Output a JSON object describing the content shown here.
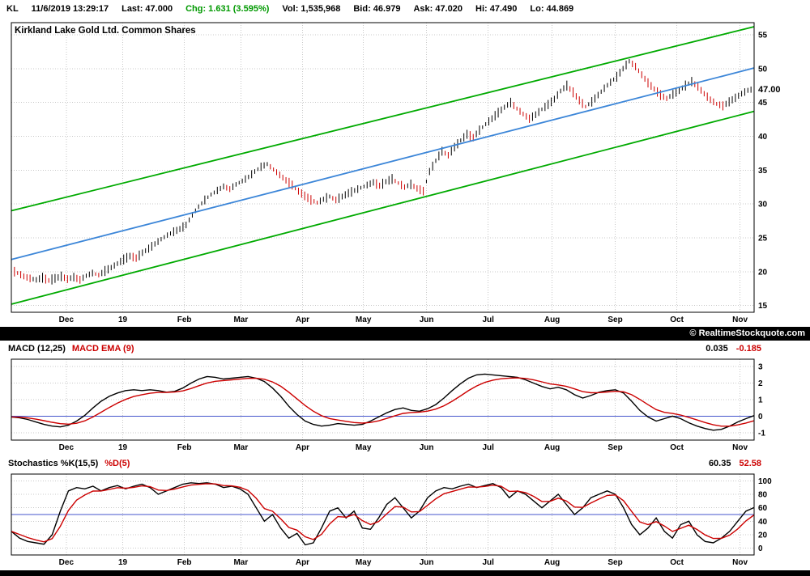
{
  "header": {
    "symbol": "KL",
    "timestamp": "11/6/2019 13:29:17",
    "last": "Last: 47.000",
    "change": "Chg: 1.631 (3.595%)",
    "volume": "Vol: 1,535,968",
    "bid": "Bid: 46.979",
    "ask": "Ask: 47.020",
    "high": "Hi: 47.490",
    "low": "Lo: 44.869"
  },
  "watermark": "© RealtimeStockquote.com",
  "macd_panel": {
    "label_main": "MACD (12,25)",
    "label_signal": "MACD EMA (9)",
    "value_main": "0.035",
    "value_signal": "-0.185"
  },
  "stoch_panel": {
    "label_main": "Stochastics %K(15,5)",
    "label_signal": "%D(5)",
    "value_main": "60.35",
    "value_signal": "52.58"
  },
  "colors": {
    "positive_change": "#009900",
    "signal_red": "#cc0000",
    "channel_green": "#00aa00",
    "trend_blue": "#3c86d8",
    "grid": "#c8c8c8",
    "ref_blue": "#4455cc"
  },
  "chart_data": [
    {
      "type": "bar",
      "name": "price",
      "title": "Kirkland Lake Gold Ltd. Common Shares",
      "ylim": [
        14.0,
        56.8
      ],
      "yticks": [
        15,
        20,
        25,
        30,
        35,
        40,
        45,
        50,
        55
      ],
      "last_price": 47.0,
      "last_price_label": "47.00",
      "bar_up_color": "#000000",
      "bar_down_color": "#cc0000",
      "bar_halfrange_hint": [
        0.25,
        0.75
      ],
      "x_months": [
        {
          "label": "Dec",
          "t": 0.074
        },
        {
          "label": "19",
          "t": 0.15
        },
        {
          "label": "Feb",
          "t": 0.233
        },
        {
          "label": "Mar",
          "t": 0.309
        },
        {
          "label": "Apr",
          "t": 0.392
        },
        {
          "label": "May",
          "t": 0.474
        },
        {
          "label": "Jun",
          "t": 0.559
        },
        {
          "label": "Jul",
          "t": 0.642
        },
        {
          "label": "Aug",
          "t": 0.728
        },
        {
          "label": "Sep",
          "t": 0.813
        },
        {
          "label": "Oct",
          "t": 0.896
        },
        {
          "label": "Nov",
          "t": 0.981
        }
      ],
      "overlays": [
        {
          "name": "upper-channel",
          "color": "#00aa00",
          "p0": 29.0,
          "p1": 56.2
        },
        {
          "name": "mid-trendline",
          "color": "#3c86d8",
          "p0": 21.8,
          "p1": 50.1
        },
        {
          "name": "lower-channel",
          "color": "#00aa00",
          "p0": 15.2,
          "p1": 43.7
        }
      ],
      "close": [
        20.2,
        19.8,
        19.3,
        19.0,
        18.8,
        19.1,
        18.7,
        19.0,
        19.3,
        18.9,
        19.2,
        18.8,
        19.4,
        19.8,
        19.5,
        20.1,
        20.6,
        21.2,
        21.8,
        22.3,
        22.0,
        22.8,
        23.4,
        24.1,
        24.8,
        25.4,
        25.9,
        26.3,
        26.9,
        28.4,
        29.6,
        30.6,
        31.4,
        32.0,
        32.6,
        32.2,
        32.9,
        33.4,
        34.0,
        34.8,
        35.5,
        35.9,
        35.1,
        34.3,
        33.5,
        32.8,
        31.9,
        31.2,
        30.6,
        30.2,
        30.7,
        31.1,
        30.6,
        31.1,
        31.6,
        32.0,
        32.4,
        32.8,
        33.2,
        32.7,
        33.3,
        33.7,
        33.1,
        32.5,
        32.9,
        32.3,
        31.9,
        34.8,
        36.4,
        37.8,
        37.2,
        38.4,
        39.4,
        40.3,
        39.8,
        40.9,
        41.8,
        42.6,
        43.5,
        44.3,
        45.0,
        44.1,
        43.3,
        42.6,
        43.2,
        44.0,
        44.7,
        45.5,
        46.7,
        47.5,
        46.5,
        45.3,
        44.4,
        45.1,
        46.1,
        47.1,
        48.0,
        48.8,
        50.0,
        51.1,
        50.3,
        49.1,
        47.9,
        47.0,
        46.1,
        45.6,
        46.2,
        46.8,
        47.5,
        48.1,
        47.3,
        46.3,
        45.4,
        44.8,
        44.5,
        45.1,
        45.7,
        46.3,
        46.8,
        47.0
      ]
    },
    {
      "type": "line",
      "name": "macd",
      "ylim": [
        -1.45,
        3.45
      ],
      "yticks": [
        -1,
        0,
        1,
        2,
        3
      ],
      "zero_line": 0,
      "x_months": [
        {
          "label": "Dec",
          "t": 0.074
        },
        {
          "label": "19",
          "t": 0.15
        },
        {
          "label": "Feb",
          "t": 0.233
        },
        {
          "label": "Mar",
          "t": 0.309
        },
        {
          "label": "Apr",
          "t": 0.392
        },
        {
          "label": "May",
          "t": 0.474
        },
        {
          "label": "Jun",
          "t": 0.559
        },
        {
          "label": "Jul",
          "t": 0.642
        },
        {
          "label": "Aug",
          "t": 0.728
        },
        {
          "label": "Sep",
          "t": 0.813
        },
        {
          "label": "Oct",
          "t": 0.896
        },
        {
          "label": "Nov",
          "t": 0.981
        }
      ],
      "series": [
        {
          "name": "MACD (12,25)",
          "color": "#000000",
          "last_value": 0.035,
          "values": [
            -0.05,
            -0.1,
            -0.2,
            -0.35,
            -0.5,
            -0.6,
            -0.65,
            -0.55,
            -0.3,
            0.05,
            0.5,
            0.9,
            1.2,
            1.4,
            1.55,
            1.6,
            1.55,
            1.6,
            1.55,
            1.45,
            1.5,
            1.7,
            2.0,
            2.25,
            2.4,
            2.35,
            2.25,
            2.3,
            2.35,
            2.4,
            2.3,
            2.1,
            1.7,
            1.2,
            0.6,
            0.1,
            -0.3,
            -0.5,
            -0.6,
            -0.55,
            -0.45,
            -0.5,
            -0.55,
            -0.5,
            -0.3,
            -0.05,
            0.2,
            0.4,
            0.5,
            0.35,
            0.3,
            0.45,
            0.7,
            1.1,
            1.55,
            1.95,
            2.3,
            2.5,
            2.55,
            2.5,
            2.45,
            2.4,
            2.35,
            2.2,
            2.0,
            1.8,
            1.65,
            1.75,
            1.6,
            1.3,
            1.1,
            1.25,
            1.45,
            1.55,
            1.6,
            1.4,
            0.9,
            0.35,
            -0.05,
            -0.3,
            -0.15,
            0.0,
            -0.15,
            -0.4,
            -0.6,
            -0.75,
            -0.85,
            -0.8,
            -0.6,
            -0.35,
            -0.15,
            0.035
          ]
        },
        {
          "name": "MACD EMA (9)",
          "color": "#cc0000",
          "last_value": -0.185,
          "derived": "ema",
          "alpha": 0.3,
          "of": 0
        }
      ]
    },
    {
      "type": "line",
      "name": "stochastics",
      "ylim": [
        -10,
        110
      ],
      "yticks": [
        0,
        20,
        40,
        60,
        80,
        100
      ],
      "mid_line": 50,
      "x_months": [
        {
          "label": "Dec",
          "t": 0.074
        },
        {
          "label": "19",
          "t": 0.15
        },
        {
          "label": "Feb",
          "t": 0.233
        },
        {
          "label": "Mar",
          "t": 0.309
        },
        {
          "label": "Apr",
          "t": 0.392
        },
        {
          "label": "May",
          "t": 0.474
        },
        {
          "label": "Jun",
          "t": 0.559
        },
        {
          "label": "Jul",
          "t": 0.642
        },
        {
          "label": "Aug",
          "t": 0.728
        },
        {
          "label": "Sep",
          "t": 0.813
        },
        {
          "label": "Oct",
          "t": 0.896
        },
        {
          "label": "Nov",
          "t": 0.981
        }
      ],
      "series": [
        {
          "name": "Stochastics %K(15,5)",
          "color": "#000000",
          "last_value": 60.35,
          "values": [
            25,
            15,
            10,
            8,
            6,
            20,
            55,
            85,
            90,
            88,
            92,
            85,
            90,
            93,
            88,
            92,
            95,
            90,
            80,
            85,
            90,
            95,
            97,
            96,
            97,
            95,
            90,
            92,
            88,
            80,
            60,
            40,
            50,
            30,
            15,
            22,
            5,
            8,
            30,
            55,
            60,
            45,
            55,
            30,
            28,
            45,
            65,
            75,
            60,
            45,
            55,
            75,
            85,
            90,
            88,
            92,
            95,
            90,
            93,
            96,
            90,
            75,
            85,
            80,
            70,
            60,
            70,
            80,
            65,
            50,
            60,
            75,
            80,
            85,
            80,
            60,
            35,
            20,
            30,
            45,
            25,
            15,
            35,
            40,
            20,
            10,
            8,
            15,
            25,
            40,
            55,
            60.35
          ]
        },
        {
          "name": "%D(5)",
          "color": "#cc0000",
          "last_value": 52.58,
          "derived": "ema",
          "alpha": 0.45,
          "of": 0
        }
      ]
    }
  ]
}
